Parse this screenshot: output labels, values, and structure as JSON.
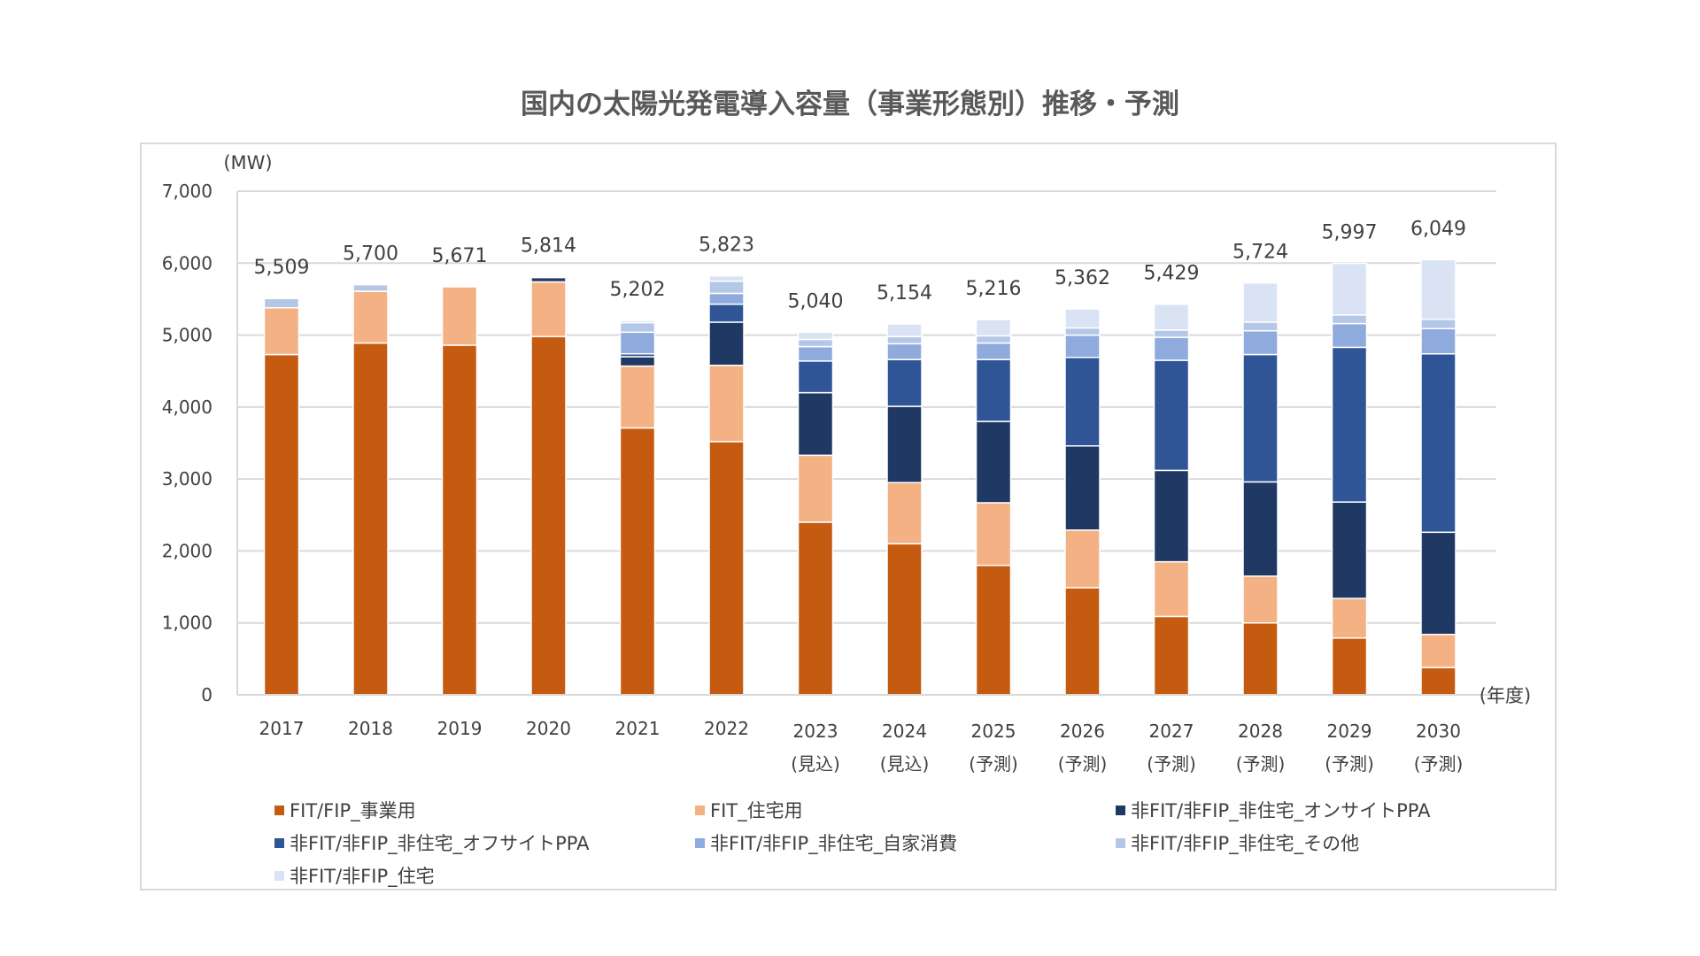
{
  "title": "国内の太陽光発電導入容量（事業形態別）推移・予測",
  "chart_data": {
    "type": "bar",
    "stacked": true,
    "title": "国内の太陽光発電導入容量（事業形態別）推移・予測",
    "ylabel": "(MW)",
    "xlabel": "(年度)",
    "ylim": [
      0,
      7000
    ],
    "yticks": [
      0,
      1000,
      2000,
      3000,
      4000,
      5000,
      6000,
      7000
    ],
    "ytick_labels": [
      "0",
      "1,000",
      "2,000",
      "3,000",
      "4,000",
      "5,000",
      "6,000",
      "7,000"
    ],
    "grid": true,
    "legend_position": "bottom",
    "categories": [
      "2017",
      "2018",
      "2019",
      "2020",
      "2021",
      "2022",
      "2023",
      "2024",
      "2025",
      "2026",
      "2027",
      "2028",
      "2029",
      "2030"
    ],
    "category_sublabels": [
      "",
      "",
      "",
      "",
      "",
      "",
      "(見込)",
      "(見込)",
      "(予測)",
      "(予測)",
      "(予測)",
      "(予測)",
      "(予測)",
      "(予測)"
    ],
    "totals": [
      5509,
      5700,
      5671,
      5814,
      5202,
      5823,
      5040,
      5154,
      5216,
      5362,
      5429,
      5724,
      5997,
      6049
    ],
    "total_labels": [
      "5,509",
      "5,700",
      "5,671",
      "5,814",
      "5,202",
      "5,823",
      "5,040",
      "5,154",
      "5,216",
      "5,362",
      "5,429",
      "5,724",
      "5,997",
      "6,049"
    ],
    "series": [
      {
        "name": "FIT/FIP_事業用",
        "color": "#c55a11",
        "values": [
          4730,
          4890,
          4860,
          4980,
          3710,
          3520,
          2400,
          2100,
          1800,
          1490,
          1090,
          1000,
          790,
          380
        ]
      },
      {
        "name": "FIT_住宅用",
        "color": "#f4b183",
        "values": [
          650,
          720,
          811,
          760,
          860,
          1060,
          930,
          850,
          870,
          800,
          760,
          650,
          550,
          460
        ]
      },
      {
        "name": "非FIT/非FIP_非住宅_オンサイトPPA",
        "color": "#203864",
        "values": [
          0,
          0,
          0,
          60,
          130,
          600,
          870,
          1060,
          1130,
          1170,
          1270,
          1310,
          1340,
          1420
        ]
      },
      {
        "name": "非FIT/非FIP_非住宅_オフサイトPPA",
        "color": "#2f5597",
        "values": [
          0,
          0,
          0,
          0,
          40,
          250,
          440,
          650,
          860,
          1230,
          1530,
          1770,
          2150,
          2480
        ]
      },
      {
        "name": "非FIT/非FIP_非住宅_自家消費",
        "color": "#8faadc",
        "values": [
          0,
          0,
          0,
          0,
          300,
          150,
          200,
          220,
          230,
          310,
          320,
          330,
          330,
          350
        ]
      },
      {
        "name": "非FIT/非FIP_非住宅_その他",
        "color": "#b4c7e7",
        "values": [
          129,
          90,
          0,
          14,
          132,
          170,
          100,
          100,
          100,
          100,
          100,
          120,
          120,
          130
        ]
      },
      {
        "name": "非FIT/非FIP_住宅",
        "color": "#dae3f3",
        "values": [
          0,
          0,
          0,
          0,
          30,
          73,
          100,
          174,
          226,
          262,
          359,
          544,
          717,
          829
        ]
      }
    ]
  }
}
